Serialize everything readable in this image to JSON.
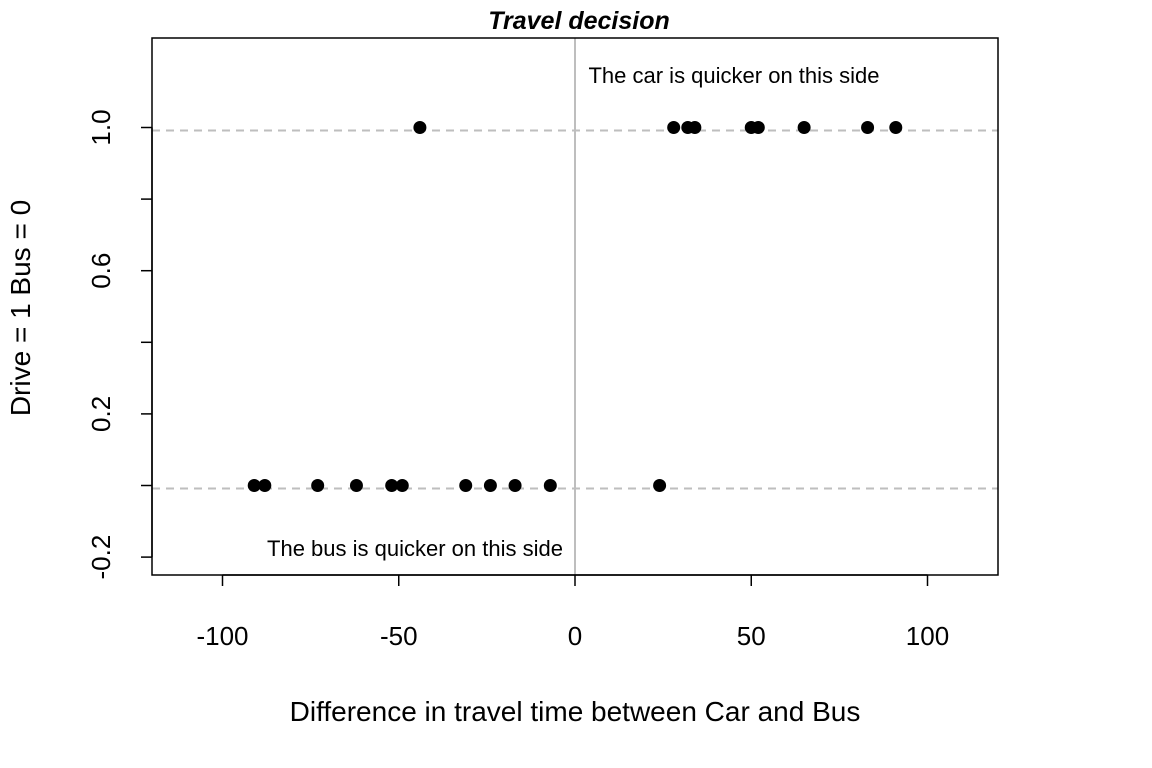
{
  "chart_data": {
    "type": "scatter",
    "title": "Travel decision",
    "xlabel": "Difference in travel time between Car and Bus",
    "ylabel": "Drive = 1 Bus = 0",
    "xlim": [
      -120,
      120
    ],
    "ylim": [
      -0.25,
      1.25
    ],
    "x_ticks": [
      -100,
      -50,
      0,
      50,
      100
    ],
    "x_tick_labels": [
      "-100",
      "-50",
      "0",
      "50",
      "100"
    ],
    "y_ticks": [
      -0.2,
      0.0,
      0.2,
      0.4,
      0.6,
      0.8,
      1.0
    ],
    "y_tick_labels": [
      "-0.2",
      "",
      "0.2",
      "",
      "0.6",
      "",
      "1.0"
    ],
    "reference_lines": {
      "horizontal_dashed": [
        0,
        1
      ],
      "vertical_solid": [
        0
      ],
      "color": "#bebebe"
    },
    "annotations": [
      {
        "text": "The car is quicker on this side",
        "x": 45,
        "y": 1.15
      },
      {
        "text": "The bus is quicker on this side",
        "x": -45,
        "y": -0.18
      }
    ],
    "points": [
      {
        "x": -44,
        "y": 1
      },
      {
        "x": 28,
        "y": 1
      },
      {
        "x": 32,
        "y": 1
      },
      {
        "x": 34,
        "y": 1
      },
      {
        "x": 50,
        "y": 1
      },
      {
        "x": 52,
        "y": 1
      },
      {
        "x": 65,
        "y": 1
      },
      {
        "x": 83,
        "y": 1
      },
      {
        "x": 91,
        "y": 1
      },
      {
        "x": -91,
        "y": 0
      },
      {
        "x": -88,
        "y": 0
      },
      {
        "x": -73,
        "y": 0
      },
      {
        "x": -62,
        "y": 0
      },
      {
        "x": -52,
        "y": 0
      },
      {
        "x": -49,
        "y": 0
      },
      {
        "x": -31,
        "y": 0
      },
      {
        "x": -24,
        "y": 0
      },
      {
        "x": -17,
        "y": 0
      },
      {
        "x": -7,
        "y": 0
      },
      {
        "x": 24,
        "y": 0
      }
    ],
    "point_color": "#000000",
    "grid": false,
    "legend": "none"
  }
}
